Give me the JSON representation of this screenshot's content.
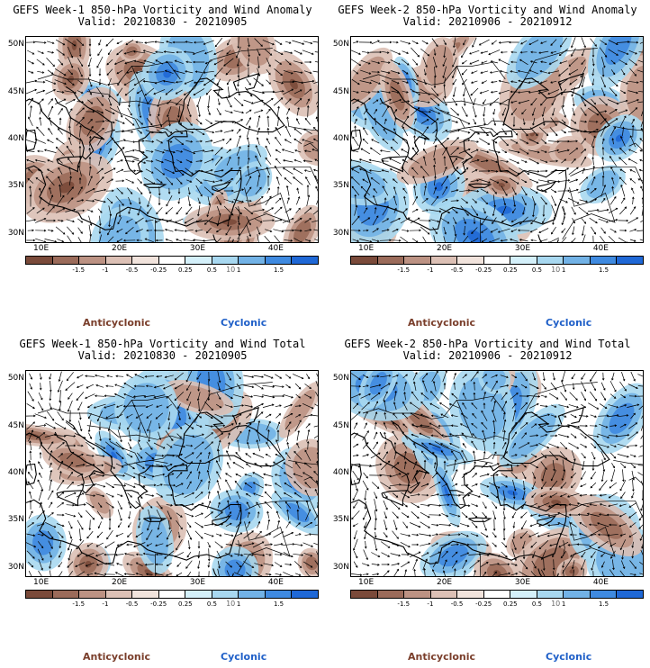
{
  "panels": [
    {
      "id": "p1",
      "title_line1": "GEFS Week-1 850-hPa Vorticity and Wind Anomaly",
      "title_line2": "Valid: 20210830 - 20210905",
      "seed": 11
    },
    {
      "id": "p2",
      "title_line1": "GEFS Week-2 850-hPa Vorticity and Wind Anomaly",
      "title_line2": "Valid: 20210906 - 20210912",
      "seed": 23
    },
    {
      "id": "p3",
      "title_line1": "GEFS Week-1 850-hPa Vorticity and Wind Total",
      "title_line2": "Valid: 20210830 - 20210905",
      "seed": 37
    },
    {
      "id": "p4",
      "title_line1": "GEFS Week-2 850-hPa Vorticity and Wind Total",
      "title_line2": "Valid: 20210906 - 20210912",
      "seed": 53
    }
  ],
  "axes": {
    "y_labels": [
      "50N",
      "45N",
      "40N",
      "35N",
      "30N"
    ],
    "x_labels": [
      "10E",
      "20E",
      "30E",
      "40E"
    ]
  },
  "colorbar": {
    "colors": [
      "#7a4a3a",
      "#9b6b5a",
      "#bc9283",
      "#dcc0b5",
      "#f1e3dc",
      "#ffffff",
      "#d4f0fa",
      "#a8d8f0",
      "#72b2e6",
      "#3f8ae0",
      "#1f68d6"
    ],
    "labels": [
      "-1.5",
      "-1",
      "-0.5",
      "-0.25",
      "0.25",
      "0.5",
      "1",
      "1.5"
    ],
    "unit": "10"
  },
  "legend": {
    "anticyclonic": "Anticyclonic",
    "cyclonic": "Cyclonic"
  }
}
